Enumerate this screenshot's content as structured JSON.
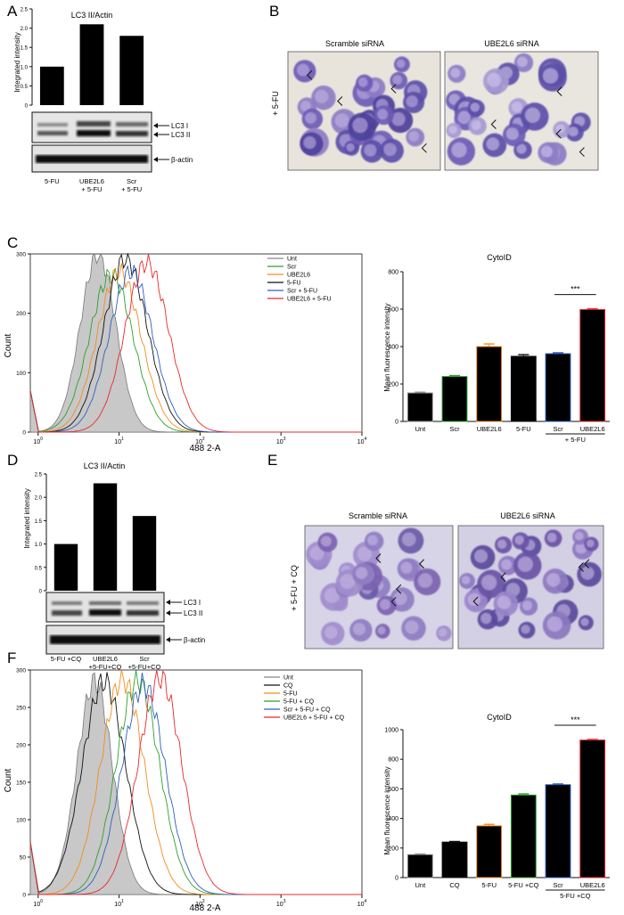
{
  "panel_letters": {
    "A": "A",
    "B": "B",
    "C": "C",
    "D": "D",
    "E": "E",
    "F": "F"
  },
  "blotA": {
    "title": "LC3 II/Actin",
    "ylabel": "Integrated intensity",
    "yticks": [
      "0",
      "0.5",
      "1.0",
      "1.5",
      "2.0",
      "2.5"
    ],
    "lc3i": "LC3 I",
    "lc3ii": "LC3 II",
    "actin": "β-actin",
    "lanes": [
      [
        "5-FU",
        ""
      ],
      [
        "UBE2L6",
        "+ 5-FU"
      ],
      [
        "Scr",
        "+ 5-FU"
      ]
    ]
  },
  "blotD": {
    "title": "LC3 II/Actin",
    "ylabel": "Integrated intensity",
    "yticks": [
      "0",
      "0.5",
      "1.0",
      "1.5",
      "2.0",
      "2.5"
    ],
    "lc3i": "LC3 I",
    "lc3ii": "LC3 II",
    "actin": "β-actin",
    "lanes": [
      [
        "5-FU +CQ",
        ""
      ],
      [
        "UBE2L6",
        "+5-FU+CQ"
      ],
      [
        "Scr",
        "+5-FU+CQ"
      ]
    ]
  },
  "micB": {
    "left": "Scramble siRNA",
    "right": "UBE2L6 siRNA",
    "side": "+ 5-FU"
  },
  "micE": {
    "left": "Scramble siRNA",
    "right": "UBE2L6 siRNA",
    "side": "+ 5-FU + CQ"
  },
  "flowC": {
    "ylabel": "Count",
    "xlabel": "488 2-A",
    "yticks": [
      "0",
      "100",
      "200",
      "300"
    ],
    "legend": [
      {
        "name": "Unt",
        "color": "#888888"
      },
      {
        "name": "Scr",
        "color": "#2ca02c"
      },
      {
        "name": "UBE2L6",
        "color": "#f28c1c"
      },
      {
        "name": "5-FU",
        "color": "#111111"
      },
      {
        "name": "Scr + 5-FU",
        "color": "#2f5fbf"
      },
      {
        "name": "UBE2L6 + 5-FU",
        "color": "#e8282b"
      }
    ]
  },
  "flowF": {
    "ylabel": "Count",
    "xlabel": "488 2-A",
    "yticks": [
      "0",
      "50",
      "100",
      "150",
      "200",
      "250",
      "300"
    ],
    "legend": [
      {
        "name": "Unt",
        "color": "#888888"
      },
      {
        "name": "CQ",
        "color": "#111111"
      },
      {
        "name": "5-FU",
        "color": "#f28c1c"
      },
      {
        "name": "5-FU + CQ",
        "color": "#2ca02c"
      },
      {
        "name": "Scr + 5-FU + CQ",
        "color": "#2f5fbf"
      },
      {
        "name": "UBE2L6 + 5-FU + CQ",
        "color": "#e8282b"
      }
    ]
  },
  "barC": {
    "title": "CytoID",
    "ylabel": "Mean fluorescence intensity",
    "yticks": [
      "0",
      "200",
      "400",
      "600",
      "800"
    ],
    "sig": "***",
    "group": "+ 5-FU"
  },
  "barF": {
    "title": "CytoID",
    "ylabel": "Mean fluorescence intensity",
    "yticks": [
      "0",
      "200",
      "400",
      "600",
      "800",
      "1000"
    ],
    "sig": "***",
    "group": "5-FU +CQ"
  },
  "chart_data": [
    {
      "type": "bar",
      "id": "A",
      "title": "LC3 II/Actin",
      "ylabel": "Integrated intensity",
      "categories": [
        "5-FU",
        "UBE2L6 + 5-FU",
        "Scr + 5-FU"
      ],
      "values": [
        1.0,
        2.1,
        1.8
      ],
      "ylim": [
        0,
        2.5
      ]
    },
    {
      "type": "line",
      "id": "C",
      "xlabel": "488 2-A",
      "ylabel": "Count",
      "xscale": "log",
      "xlim": [
        0.8,
        10000
      ],
      "ylim": [
        0,
        300
      ],
      "xticks": [
        "10^0",
        "10^1",
        "10^2",
        "10^3",
        "10^4"
      ],
      "series": [
        {
          "name": "Unt",
          "peak_x": 5.5,
          "peak_y": 300
        },
        {
          "name": "Scr",
          "peak_x": 8.0,
          "peak_y": 265
        },
        {
          "name": "UBE2L6",
          "peak_x": 10.0,
          "peak_y": 270
        },
        {
          "name": "5-FU",
          "peak_x": 12.0,
          "peak_y": 292
        },
        {
          "name": "Scr + 5-FU",
          "peak_x": 14.0,
          "peak_y": 270
        },
        {
          "name": "UBE2L6 + 5-FU",
          "peak_x": 22.0,
          "peak_y": 285
        }
      ]
    },
    {
      "type": "bar",
      "id": "C-bar",
      "title": "CytoID",
      "ylabel": "Mean fluorescence intensity",
      "categories": [
        "Unt",
        "Scr",
        "UBE2L6",
        "5-FU",
        "Scr",
        "UBE2L6"
      ],
      "values": [
        152,
        240,
        400,
        348,
        362,
        598
      ],
      "errors": [
        4,
        5,
        14,
        9,
        5,
        4
      ],
      "colors": [
        "#888888",
        "#2ca02c",
        "#f28c1c",
        "#111111",
        "#2f5fbf",
        "#e8282b"
      ],
      "ylim": [
        0,
        800
      ]
    },
    {
      "type": "bar",
      "id": "D",
      "title": "LC3 II/Actin",
      "ylabel": "Integrated intensity",
      "categories": [
        "5-FU +CQ",
        "UBE2L6 +5-FU+CQ",
        "Scr +5-FU+CQ"
      ],
      "values": [
        1.0,
        2.3,
        1.6
      ],
      "ylim": [
        0,
        2.5
      ]
    },
    {
      "type": "line",
      "id": "F",
      "xlabel": "488 2-A",
      "ylabel": "Count",
      "xscale": "log",
      "xlim": [
        0.8,
        10000
      ],
      "ylim": [
        0,
        300
      ],
      "xticks": [
        "10^0",
        "10^1",
        "10^2",
        "10^3",
        "10^4"
      ],
      "series": [
        {
          "name": "Unt",
          "peak_x": 5.0,
          "peak_y": 285
        },
        {
          "name": "CQ",
          "peak_x": 6.5,
          "peak_y": 285
        },
        {
          "name": "5-FU",
          "peak_x": 11.0,
          "peak_y": 288
        },
        {
          "name": "5-FU + CQ",
          "peak_x": 17.0,
          "peak_y": 285
        },
        {
          "name": "Scr + 5-FU + CQ",
          "peak_x": 20.0,
          "peak_y": 280
        },
        {
          "name": "UBE2L6 + 5-FU + CQ",
          "peak_x": 32.0,
          "peak_y": 290
        }
      ]
    },
    {
      "type": "bar",
      "id": "F-bar",
      "title": "CytoID",
      "ylabel": "Mean fluorescence intensity",
      "categories": [
        "Unt",
        "CQ",
        "5-FU",
        "5-FU +CQ",
        "Scr",
        "UBE2L6"
      ],
      "values": [
        155,
        240,
        350,
        558,
        628,
        930
      ],
      "errors": [
        4,
        4,
        10,
        8,
        5,
        4
      ],
      "colors": [
        "#888888",
        "#111111",
        "#f28c1c",
        "#2ca02c",
        "#2f5fbf",
        "#e8282b"
      ],
      "ylim": [
        0,
        1000
      ]
    }
  ]
}
